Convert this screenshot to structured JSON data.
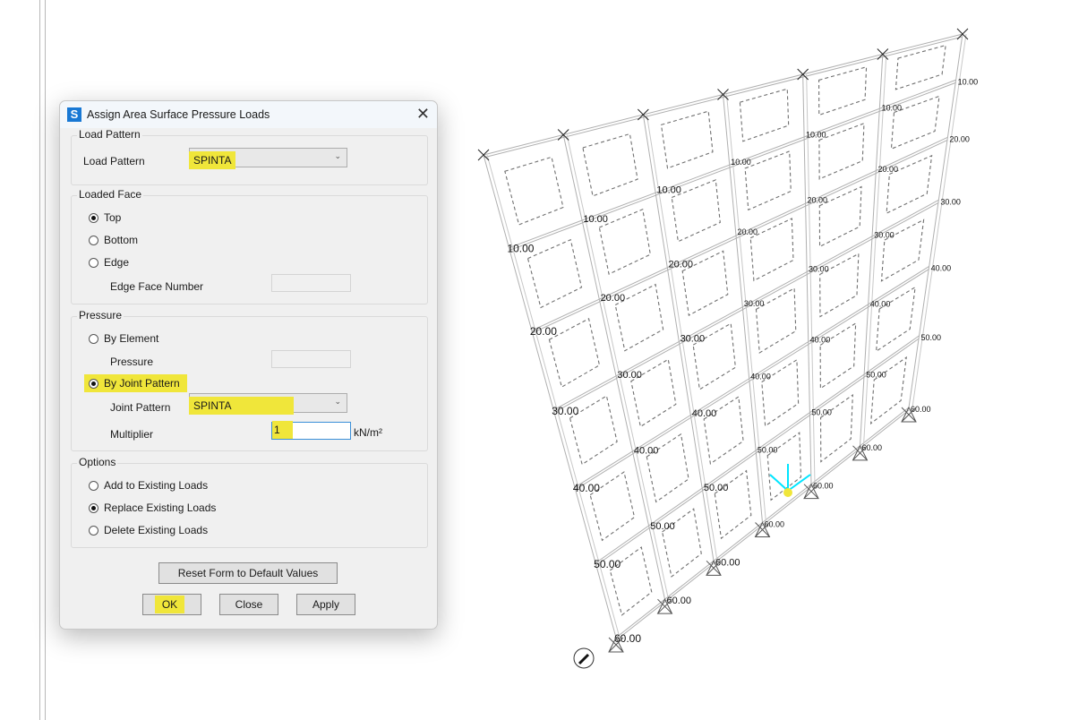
{
  "dialog": {
    "title": "Assign Area Surface Pressure Loads",
    "load_pattern_group": "Load Pattern",
    "load_pattern_label": "Load Pattern",
    "load_pattern_value": "SPINTA",
    "loaded_face_group": "Loaded Face",
    "face_options": [
      {
        "label": "Top",
        "selected": true
      },
      {
        "label": "Bottom",
        "selected": false
      },
      {
        "label": "Edge",
        "selected": false
      }
    ],
    "edge_face_number_label": "Edge Face Number",
    "edge_face_number_value": "",
    "pressure_group": "Pressure",
    "by_element_label": "By Element",
    "pressure_label": "Pressure",
    "pressure_value": "",
    "by_joint_pattern_label": "By Joint Pattern",
    "joint_pattern_label": "Joint Pattern",
    "joint_pattern_value": "SPINTA",
    "multiplier_label": "Multiplier",
    "multiplier_value": "1",
    "multiplier_unit": "kN/m²",
    "options_group": "Options",
    "options": [
      {
        "label": "Add to Existing Loads",
        "selected": false
      },
      {
        "label": "Replace Existing Loads",
        "selected": true
      },
      {
        "label": "Delete Existing Loads",
        "selected": false
      }
    ],
    "reset_label": "Reset Form to Default Values",
    "ok_label": "OK",
    "close_label": "Close",
    "apply_label": "Apply",
    "highlight_color": "#f0e63a"
  },
  "model": {
    "joint_row_values": [
      "",
      "10.00",
      "20.00",
      "30.00",
      "40.00",
      "50.00",
      "60.00"
    ],
    "columns": 6,
    "axis_color": "#00e5ff"
  }
}
